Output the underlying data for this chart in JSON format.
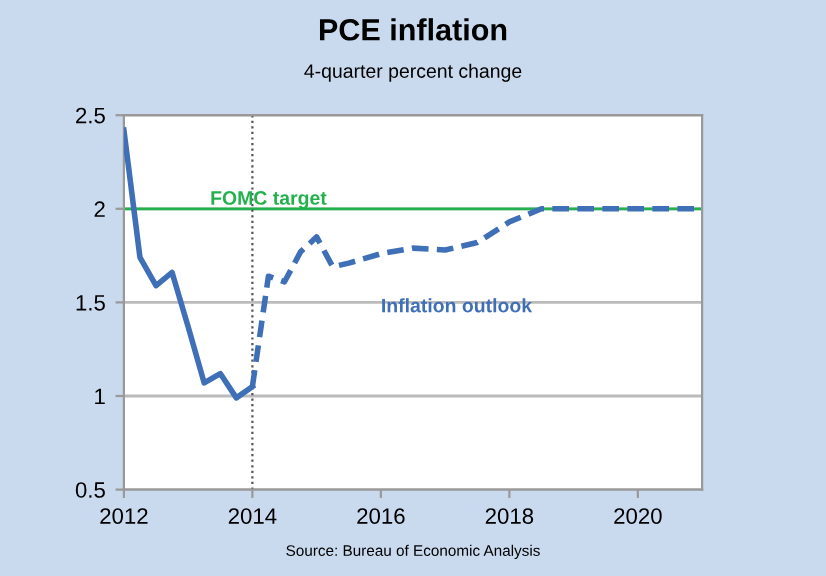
{
  "chart_data": {
    "type": "line",
    "title": "PCE inflation",
    "subtitle": "4-quarter percent change",
    "series": [
      {
        "color": "#3e6fb7",
        "line_style": "solid",
        "x": [
          2012.0,
          2012.25,
          2012.5,
          2012.75,
          2013.0,
          2013.25,
          2013.5,
          2013.75,
          2014.0
        ],
        "values": [
          2.42,
          1.74,
          1.59,
          1.66,
          1.37,
          1.07,
          1.12,
          0.99,
          1.05
        ]
      },
      {
        "name": "Inflation outlook",
        "color": "#3e6fb7",
        "line_style": "dashed",
        "x": [
          2014.0,
          2014.25,
          2014.5,
          2014.75,
          2015.0,
          2015.25,
          2015.5,
          2016.0,
          2016.5,
          2017.0,
          2017.5,
          2018.0,
          2018.5,
          2019.0,
          2020.0,
          2021.0
        ],
        "values": [
          1.05,
          1.64,
          1.61,
          1.77,
          1.85,
          1.69,
          1.71,
          1.76,
          1.79,
          1.78,
          1.82,
          1.93,
          2.0,
          2.0,
          2.0,
          2.0
        ]
      }
    ],
    "xlim": [
      2012,
      2021
    ],
    "xticks": [
      2012,
      2014,
      2016,
      2018,
      2020
    ],
    "ylim": [
      0.5,
      2.5
    ],
    "yticks": [
      0.5,
      1,
      1.5,
      2,
      2.5
    ],
    "grid": "y",
    "ref_lines": [
      {
        "axis": "y",
        "value": 2,
        "label": "FOMC target",
        "color": "#22b14c",
        "line_style": "solid"
      },
      {
        "axis": "x",
        "value": 2014,
        "color": "#555555",
        "line_style": "dotted"
      }
    ],
    "annotations": [
      "Source: Bureau of Economic Analysis"
    ]
  }
}
